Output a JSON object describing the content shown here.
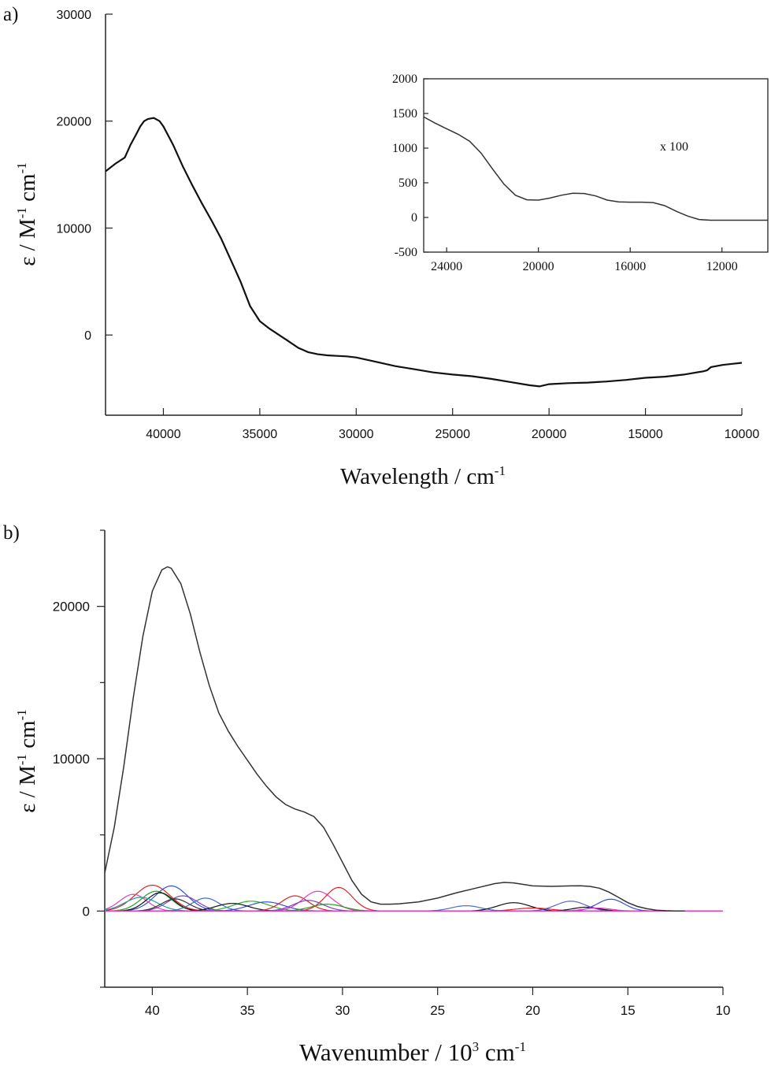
{
  "chart_data": [
    {
      "id": "a",
      "panel_label": "a)",
      "type": "line",
      "xlabel": "Wavelength / cm",
      "xlabel_sup": "-1",
      "ylabel": "ε / M",
      "ylabel_sup1": "-1",
      "ylabel_mid": " cm",
      "ylabel_sup2": "-1",
      "xlim": [
        43000,
        10000
      ],
      "ylim": [
        -7500,
        30000
      ],
      "x_ticks": [
        40000,
        35000,
        30000,
        25000,
        20000,
        15000,
        10000
      ],
      "x_tick_labels": [
        "40000",
        "35000",
        "30000",
        "25000",
        "20000",
        "15000",
        "10000"
      ],
      "y_ticks": [
        0,
        10000,
        20000,
        30000
      ],
      "y_tick_labels": [
        "0",
        "10000",
        "20000",
        "30000"
      ],
      "series": [
        {
          "color": "#111111",
          "x": [
            43000,
            42500,
            42000,
            41700,
            41400,
            41200,
            41000,
            40800,
            40500,
            40200,
            40000,
            39500,
            39000,
            38500,
            38000,
            37500,
            37000,
            36500,
            36000,
            35500,
            35000,
            34500,
            34000,
            33500,
            33000,
            32500,
            32000,
            31500,
            31000,
            30500,
            30000,
            29000,
            28000,
            27000,
            26000,
            25000,
            24000,
            23000,
            22000,
            21000,
            20500,
            20000,
            19000,
            18000,
            17000,
            16000,
            15000,
            14000,
            13000,
            12000,
            11800,
            11600,
            11000,
            10500,
            10000
          ],
          "y": [
            15300,
            16000,
            16600,
            17800,
            18800,
            19500,
            20000,
            20200,
            20300,
            20000,
            19500,
            17800,
            15800,
            14000,
            12300,
            10700,
            9000,
            7000,
            5000,
            2700,
            1300,
            600,
            0,
            -600,
            -1200,
            -1600,
            -1800,
            -1900,
            -1950,
            -2000,
            -2100,
            -2500,
            -2900,
            -3200,
            -3500,
            -3700,
            -3850,
            -4100,
            -4400,
            -4700,
            -4800,
            -4600,
            -4500,
            -4450,
            -4350,
            -4200,
            -4000,
            -3900,
            -3700,
            -3400,
            -3300,
            -3000,
            -2800,
            -2700,
            -2600
          ]
        }
      ],
      "inset": {
        "type": "line",
        "annotation": "x 100",
        "xlim": [
          25000,
          10000
        ],
        "ylim": [
          -500,
          2000
        ],
        "x_ticks": [
          24000,
          20000,
          16000,
          12000
        ],
        "x_tick_labels": [
          "24000",
          "20000",
          "16000",
          "12000"
        ],
        "y_ticks": [
          -500,
          0,
          500,
          1000,
          1500,
          2000
        ],
        "y_tick_labels": [
          "-500",
          "0",
          "500",
          "1000",
          "1500",
          "2000"
        ],
        "series": [
          {
            "color": "#333333",
            "x": [
              25000,
              24500,
              24000,
              23500,
              23000,
              22500,
              22000,
              21500,
              21000,
              20500,
              20000,
              19500,
              19000,
              18500,
              18000,
              17500,
              17000,
              16500,
              16000,
              15500,
              15000,
              14500,
              14000,
              13500,
              13000,
              12500,
              12000,
              11000,
              10000
            ],
            "y": [
              1450,
              1360,
              1280,
              1200,
              1100,
              930,
              700,
              480,
              320,
              255,
              250,
              280,
              320,
              350,
              345,
              310,
              250,
              225,
              220,
              220,
              215,
              170,
              90,
              20,
              -30,
              -40,
              -40,
              -40,
              -40
            ]
          }
        ]
      }
    },
    {
      "id": "b",
      "panel_label": "b)",
      "type": "line",
      "xlabel": "Wavenumber / 10",
      "xlabel_sup": "3",
      "xlabel_rest": " cm",
      "xlabel_sup2": "-1",
      "ylabel": "ε / M",
      "ylabel_sup1": "-1",
      "ylabel_mid": " cm",
      "ylabel_sup2": "-1",
      "xlim": [
        42.5,
        10
      ],
      "ylim": [
        -5000,
        25000
      ],
      "x_ticks": [
        40,
        35,
        30,
        25,
        20,
        15,
        10
      ],
      "x_tick_labels": [
        "40",
        "35",
        "30",
        "25",
        "20",
        "15",
        "10"
      ],
      "y_ticks": [
        0,
        10000,
        20000
      ],
      "y_tick_labels": [
        "0",
        "10000",
        "20000"
      ],
      "envelope": {
        "color": "#333333",
        "x": [
          42.5,
          42.0,
          41.5,
          41.0,
          40.5,
          40.0,
          39.5,
          39.2,
          39.0,
          38.5,
          38.0,
          37.5,
          37.0,
          36.5,
          36.0,
          35.5,
          35.0,
          34.5,
          34.0,
          33.5,
          33.0,
          32.5,
          32.0,
          31.5,
          31.0,
          30.5,
          30.0,
          29.5,
          29.0,
          28.5,
          28.0,
          27.5,
          27.0,
          26.0,
          25.0,
          24.0,
          23.0,
          22.0,
          21.5,
          21.0,
          20.5,
          20.0,
          19.0,
          18.0,
          17.5,
          17.0,
          16.5,
          16.0,
          15.5,
          15.0,
          14.5,
          14.0,
          13.5,
          13.0,
          12.5,
          12.0
        ],
        "y": [
          2500,
          5500,
          9500,
          14000,
          18000,
          21000,
          22400,
          22600,
          22500,
          21500,
          19500,
          17000,
          14800,
          13000,
          11800,
          10800,
          9900,
          9000,
          8200,
          7500,
          7000,
          6700,
          6500,
          6200,
          5500,
          4400,
          3200,
          2000,
          1100,
          600,
          450,
          450,
          480,
          600,
          850,
          1200,
          1500,
          1800,
          1880,
          1850,
          1750,
          1650,
          1620,
          1650,
          1660,
          1620,
          1500,
          1250,
          900,
          550,
          300,
          150,
          60,
          20,
          5,
          0
        ]
      },
      "components": [
        {
          "color": "#e02020",
          "center": 40.0,
          "amp": 1700,
          "width": 1.3
        },
        {
          "color": "#3050e0",
          "center": 39.0,
          "amp": 1650,
          "width": 1.2
        },
        {
          "color": "#e040c0",
          "center": 41.0,
          "amp": 1100,
          "width": 1.0
        },
        {
          "color": "#20a020",
          "center": 39.8,
          "amp": 1300,
          "width": 1.1
        },
        {
          "color": "#111111",
          "center": 39.6,
          "amp": 1200,
          "width": 1.0
        },
        {
          "color": "#8040c0",
          "center": 38.4,
          "amp": 1000,
          "width": 1.1
        },
        {
          "color": "#20a0a0",
          "center": 40.6,
          "amp": 900,
          "width": 1.2
        },
        {
          "color": "#333333",
          "center": 38.8,
          "amp": 800,
          "width": 1.0
        },
        {
          "color": "#4070d0",
          "center": 37.2,
          "amp": 850,
          "width": 1.0
        },
        {
          "color": "#30b030",
          "center": 34.8,
          "amp": 650,
          "width": 1.3
        },
        {
          "color": "#3050e0",
          "center": 34.0,
          "amp": 600,
          "width": 1.3
        },
        {
          "color": "#111111",
          "center": 35.8,
          "amp": 500,
          "width": 1.2
        },
        {
          "color": "#e02020",
          "center": 32.5,
          "amp": 1000,
          "width": 1.0
        },
        {
          "color": "#e040c0",
          "center": 31.3,
          "amp": 1300,
          "width": 1.1
        },
        {
          "color": "#e02020",
          "center": 30.2,
          "amp": 1550,
          "width": 1.0
        },
        {
          "color": "#8040c0",
          "center": 31.8,
          "amp": 700,
          "width": 1.1
        },
        {
          "color": "#20a020",
          "center": 30.8,
          "amp": 450,
          "width": 1.2
        },
        {
          "color": "#4070d0",
          "center": 23.5,
          "amp": 350,
          "width": 1.1
        },
        {
          "color": "#111111",
          "center": 21.0,
          "amp": 550,
          "width": 1.2
        },
        {
          "color": "#e02020",
          "center": 20.0,
          "amp": 200,
          "width": 1.3
        },
        {
          "color": "#6060d0",
          "center": 18.0,
          "amp": 650,
          "width": 1.1
        },
        {
          "color": "#111111",
          "center": 17.2,
          "amp": 250,
          "width": 1.0
        },
        {
          "color": "#3050e0",
          "center": 15.9,
          "amp": 780,
          "width": 1.0
        },
        {
          "color": "#e040c0",
          "center": 16.6,
          "amp": 200,
          "width": 1.0
        }
      ]
    }
  ]
}
